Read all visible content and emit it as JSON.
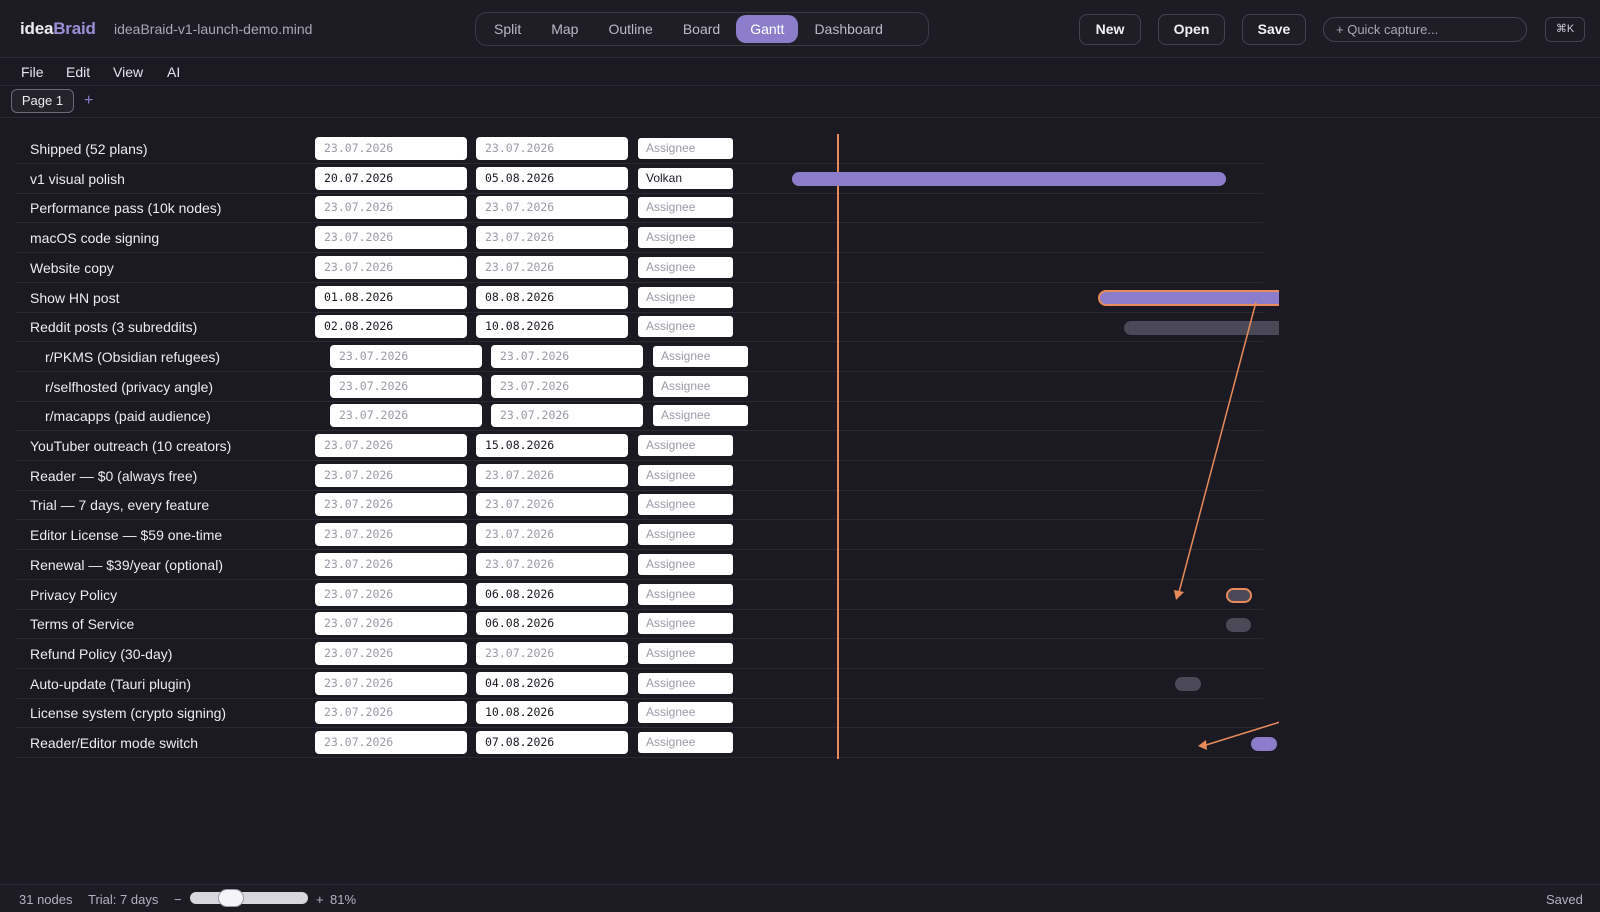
{
  "app": {
    "logo_part1": "idea",
    "logo_part2": "Braid",
    "filename": "ideaBraid-v1-launch-demo.mind",
    "view_tabs": [
      "Split",
      "Map",
      "Outline",
      "Board",
      "Gantt",
      "Dashboard"
    ],
    "active_view": "Gantt",
    "buttons": {
      "new": "New",
      "open": "Open",
      "save": "Save"
    },
    "quick_capture_placeholder": "+ Quick capture...",
    "shortcut": "⌘K"
  },
  "menu": [
    "File",
    "Edit",
    "View",
    "AI"
  ],
  "pages": {
    "current": "Page 1",
    "add": "+"
  },
  "assignee_placeholder": "Assignee",
  "rows": [
    {
      "label": "Shipped (52 plans)",
      "start": "23.07.2026",
      "end": "23.07.2026",
      "assignee": "",
      "indent": 0,
      "start_set": false,
      "end_set": false
    },
    {
      "label": "v1 visual polish",
      "start": "20.07.2026",
      "end": "05.08.2026",
      "assignee": "Volkan",
      "indent": 0,
      "start_set": true,
      "end_set": true
    },
    {
      "label": "Performance pass (10k nodes)",
      "start": "23.07.2026",
      "end": "23.07.2026",
      "assignee": "",
      "indent": 0,
      "start_set": false,
      "end_set": false
    },
    {
      "label": "macOS code signing",
      "start": "23.07.2026",
      "end": "23.07.2026",
      "assignee": "",
      "indent": 0,
      "start_set": false,
      "end_set": false
    },
    {
      "label": "Website copy",
      "start": "23.07.2026",
      "end": "23.07.2026",
      "assignee": "",
      "indent": 0,
      "start_set": false,
      "end_set": false
    },
    {
      "label": "Show HN post",
      "start": "01.08.2026",
      "end": "08.08.2026",
      "assignee": "",
      "indent": 0,
      "start_set": true,
      "end_set": true
    },
    {
      "label": "Reddit posts (3 subreddits)",
      "start": "02.08.2026",
      "end": "10.08.2026",
      "assignee": "",
      "indent": 0,
      "start_set": true,
      "end_set": true
    },
    {
      "label": "r/PKMS (Obsidian refugees)",
      "start": "23.07.2026",
      "end": "23.07.2026",
      "assignee": "",
      "indent": 1,
      "start_set": false,
      "end_set": false
    },
    {
      "label": "r/selfhosted (privacy angle)",
      "start": "23.07.2026",
      "end": "23.07.2026",
      "assignee": "",
      "indent": 1,
      "start_set": false,
      "end_set": false
    },
    {
      "label": "r/macapps (paid audience)",
      "start": "23.07.2026",
      "end": "23.07.2026",
      "assignee": "",
      "indent": 1,
      "start_set": false,
      "end_set": false
    },
    {
      "label": "YouTuber outreach (10 creators)",
      "start": "23.07.2026",
      "end": "15.08.2026",
      "assignee": "",
      "indent": 0,
      "start_set": false,
      "end_set": true
    },
    {
      "label": "Reader — $0 (always free)",
      "start": "23.07.2026",
      "end": "23.07.2026",
      "assignee": "",
      "indent": 0,
      "start_set": false,
      "end_set": false
    },
    {
      "label": "Trial — 7 days, every feature",
      "start": "23.07.2026",
      "end": "23.07.2026",
      "assignee": "",
      "indent": 0,
      "start_set": false,
      "end_set": false
    },
    {
      "label": "Editor License — $59 one-time",
      "start": "23.07.2026",
      "end": "23.07.2026",
      "assignee": "",
      "indent": 0,
      "start_set": false,
      "end_set": false
    },
    {
      "label": "Renewal — $39/year (optional)",
      "start": "23.07.2026",
      "end": "23.07.2026",
      "assignee": "",
      "indent": 0,
      "start_set": false,
      "end_set": false
    },
    {
      "label": "Privacy Policy",
      "start": "23.07.2026",
      "end": "06.08.2026",
      "assignee": "",
      "indent": 0,
      "start_set": false,
      "end_set": true
    },
    {
      "label": "Terms of Service",
      "start": "23.07.2026",
      "end": "06.08.2026",
      "assignee": "",
      "indent": 0,
      "start_set": false,
      "end_set": true
    },
    {
      "label": "Refund Policy (30-day)",
      "start": "23.07.2026",
      "end": "23.07.2026",
      "assignee": "",
      "indent": 0,
      "start_set": false,
      "end_set": false
    },
    {
      "label": "Auto-update (Tauri plugin)",
      "start": "23.07.2026",
      "end": "04.08.2026",
      "assignee": "",
      "indent": 0,
      "start_set": false,
      "end_set": true
    },
    {
      "label": "License system (crypto signing)",
      "start": "23.07.2026",
      "end": "10.08.2026",
      "assignee": "",
      "indent": 0,
      "start_set": false,
      "end_set": true
    },
    {
      "label": "Reader/Editor mode switch",
      "start": "23.07.2026",
      "end": "07.08.2026",
      "assignee": "",
      "indent": 0,
      "start_set": false,
      "end_set": true
    }
  ],
  "colors": {
    "accent": "#8b7dc9",
    "today_line": "#e88a5a",
    "muted_bar": "#4a4955"
  },
  "status": {
    "nodes": "31 nodes",
    "trial": "Trial: 7 days",
    "zoom_minus": "−",
    "zoom_plus": "+",
    "zoom_label": "81%",
    "zoom_level": 0.81,
    "saved": "Saved"
  }
}
